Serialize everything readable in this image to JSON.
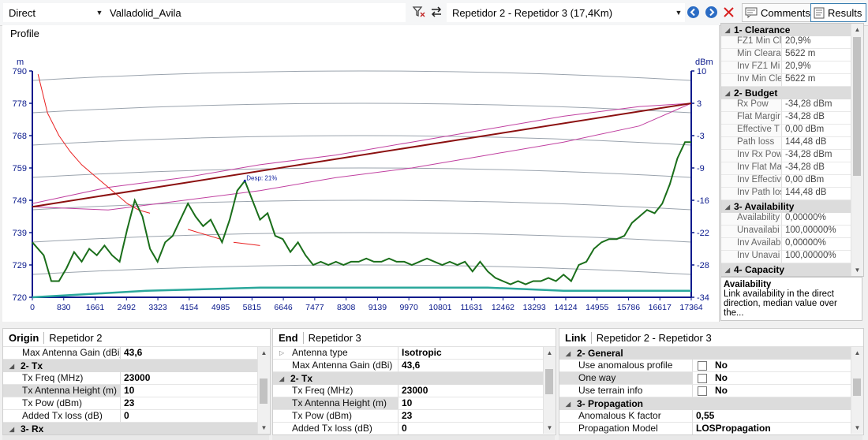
{
  "toolbar": {
    "mode": "Direct",
    "network": "Valladolid_Avila",
    "link": "Repetidor 2 - Repetidor 3 (17,4Km)",
    "comments_label": "Comments",
    "results_label": "Results"
  },
  "profile": {
    "title": "Profile"
  },
  "chart_data": {
    "type": "line",
    "left_axis_unit": "m",
    "right_axis_unit": "dBm",
    "left_ticks": [
      "790",
      "778",
      "768",
      "759",
      "749",
      "739",
      "729",
      "720"
    ],
    "right_ticks": [
      "10",
      "3",
      "-3",
      "-9",
      "-16",
      "-22",
      "-28",
      "-34"
    ],
    "x_ticks": [
      "0",
      "830",
      "1661",
      "2492",
      "3323",
      "4154",
      "4985",
      "5815",
      "6646",
      "7477",
      "8308",
      "9139",
      "9970",
      "10801",
      "11631",
      "12462",
      "13293",
      "14124",
      "14955",
      "15786",
      "16617",
      "17364"
    ],
    "xlim": [
      0,
      17364
    ],
    "ylim": [
      720,
      790
    ],
    "annotation": "Desp: 21%",
    "colors": {
      "terrain": "#1a6e1a",
      "los": "#8b1010",
      "fresnel": "#c040a0",
      "level": "#e82020",
      "baseline": "#2aa79b",
      "grid": "#9aa3ad",
      "axis": "#0a1a8c"
    },
    "terrain": [
      [
        0,
        737
      ],
      [
        300,
        733
      ],
      [
        500,
        725
      ],
      [
        700,
        725
      ],
      [
        900,
        729
      ],
      [
        1100,
        734
      ],
      [
        1300,
        731
      ],
      [
        1500,
        735
      ],
      [
        1700,
        733
      ],
      [
        1900,
        736
      ],
      [
        2100,
        733
      ],
      [
        2300,
        731
      ],
      [
        2500,
        741
      ],
      [
        2700,
        750
      ],
      [
        2900,
        745
      ],
      [
        3100,
        735
      ],
      [
        3300,
        731
      ],
      [
        3500,
        737
      ],
      [
        3700,
        739
      ],
      [
        3900,
        744
      ],
      [
        4100,
        749
      ],
      [
        4300,
        745
      ],
      [
        4500,
        742
      ],
      [
        4700,
        744
      ],
      [
        5000,
        737
      ],
      [
        5200,
        744
      ],
      [
        5400,
        753
      ],
      [
        5600,
        756
      ],
      [
        5800,
        750
      ],
      [
        6000,
        744
      ],
      [
        6200,
        746
      ],
      [
        6400,
        739
      ],
      [
        6600,
        738
      ],
      [
        6800,
        734
      ],
      [
        7000,
        737
      ],
      [
        7200,
        733
      ],
      [
        7400,
        730
      ],
      [
        7600,
        731
      ],
      [
        7800,
        730
      ],
      [
        8000,
        731
      ],
      [
        8200,
        730
      ],
      [
        8400,
        731
      ],
      [
        8600,
        731
      ],
      [
        8800,
        732
      ],
      [
        9000,
        731
      ],
      [
        9200,
        731
      ],
      [
        9400,
        732
      ],
      [
        9600,
        731
      ],
      [
        9800,
        731
      ],
      [
        10000,
        730
      ],
      [
        10200,
        731
      ],
      [
        10400,
        732
      ],
      [
        10600,
        731
      ],
      [
        10800,
        730
      ],
      [
        11000,
        731
      ],
      [
        11200,
        730
      ],
      [
        11400,
        731
      ],
      [
        11600,
        728
      ],
      [
        11800,
        731
      ],
      [
        12000,
        728
      ],
      [
        12200,
        726
      ],
      [
        12400,
        725
      ],
      [
        12600,
        724
      ],
      [
        12800,
        725
      ],
      [
        13000,
        724
      ],
      [
        13200,
        725
      ],
      [
        13400,
        725
      ],
      [
        13600,
        726
      ],
      [
        13800,
        725
      ],
      [
        14000,
        727
      ],
      [
        14200,
        725
      ],
      [
        14400,
        730
      ],
      [
        14600,
        731
      ],
      [
        14800,
        735
      ],
      [
        15000,
        737
      ],
      [
        15200,
        738
      ],
      [
        15400,
        738
      ],
      [
        15600,
        739
      ],
      [
        15800,
        743
      ],
      [
        16000,
        745
      ],
      [
        16200,
        747
      ],
      [
        16400,
        746
      ],
      [
        16600,
        749
      ],
      [
        16800,
        755
      ],
      [
        17000,
        763
      ],
      [
        17200,
        768
      ],
      [
        17364,
        768
      ]
    ],
    "los": [
      [
        0,
        748
      ],
      [
        17364,
        780
      ]
    ],
    "fresnel_top": [
      [
        0,
        749
      ],
      [
        2000,
        754
      ],
      [
        4000,
        757
      ],
      [
        6000,
        761
      ],
      [
        8000,
        764
      ],
      [
        10000,
        768
      ],
      [
        12000,
        772
      ],
      [
        14000,
        776
      ],
      [
        16000,
        779
      ],
      [
        17364,
        780
      ]
    ],
    "fresnel_bottom": [
      [
        0,
        748
      ],
      [
        2000,
        747
      ],
      [
        4000,
        750
      ],
      [
        6000,
        753
      ],
      [
        8000,
        757
      ],
      [
        10000,
        760
      ],
      [
        12000,
        764
      ],
      [
        14000,
        768
      ],
      [
        16000,
        773
      ],
      [
        17364,
        780
      ]
    ],
    "level_curve": [
      [
        150,
        789
      ],
      [
        400,
        777
      ],
      [
        700,
        770
      ],
      [
        1000,
        765
      ],
      [
        1300,
        761
      ],
      [
        1600,
        758
      ],
      [
        1900,
        755
      ],
      [
        2200,
        752
      ],
      [
        2500,
        749
      ],
      [
        2800,
        747
      ],
      [
        3100,
        746
      ]
    ],
    "level_dash1": [
      [
        4100,
        741
      ],
      [
        4950,
        738
      ]
    ],
    "level_dash2": [
      [
        5300,
        737
      ],
      [
        6000,
        736
      ]
    ],
    "baseline": [
      [
        0,
        720
      ],
      [
        3000,
        722
      ],
      [
        6000,
        723
      ],
      [
        9000,
        723
      ],
      [
        12000,
        723
      ],
      [
        14000,
        722
      ],
      [
        17364,
        722
      ]
    ]
  },
  "results": {
    "sections": [
      {
        "title": "1- Clearance",
        "rows": [
          {
            "k": "FZ1 Min Cl",
            "v": "20,9%"
          },
          {
            "k": "Min Cleara",
            "v": "5622 m"
          },
          {
            "k": "Inv FZ1 Mi",
            "v": "20,9%"
          },
          {
            "k": "Inv Min Cle",
            "v": "5622 m"
          }
        ]
      },
      {
        "title": "2- Budget",
        "rows": [
          {
            "k": "Rx Pow",
            "v": "-34,28 dBm"
          },
          {
            "k": "Flat Margir",
            "v": "-34,28 dB"
          },
          {
            "k": "Effective T",
            "v": "0,00 dBm"
          },
          {
            "k": "Path loss",
            "v": "144,48 dB"
          },
          {
            "k": "Inv Rx Pow",
            "v": "-34,28 dBm"
          },
          {
            "k": "Inv Flat Ma",
            "v": "-34,28 dB"
          },
          {
            "k": "Inv Effectiv",
            "v": "0,00 dBm"
          },
          {
            "k": "Inv Path los",
            "v": "144,48 dB"
          }
        ]
      },
      {
        "title": "3- Availability",
        "rows": [
          {
            "k": "Availability",
            "v": "0,00000%"
          },
          {
            "k": "Unavailabi",
            "v": "100,00000%"
          },
          {
            "k": "Inv Availab",
            "v": "0,00000%"
          },
          {
            "k": "Inv Unavai",
            "v": "100,00000%"
          }
        ]
      },
      {
        "title": "4- Capacity",
        "rows": []
      }
    ],
    "desc_title": "Availability",
    "desc_text": "Link availability in the direct direction, median value over the..."
  },
  "origin": {
    "label": "Origin",
    "name": "Repetidor 2",
    "rows": [
      {
        "type": "row",
        "k": "Max Antenna Gain (dBi)",
        "v": "43,6"
      },
      {
        "type": "sec",
        "t": "2- Tx"
      },
      {
        "type": "row",
        "k": "Tx Freq (MHz)",
        "v": "23000"
      },
      {
        "type": "row",
        "k": "Tx Antenna Height (m)",
        "v": "10",
        "sel": true
      },
      {
        "type": "row",
        "k": "Tx Pow (dBm)",
        "v": "23"
      },
      {
        "type": "row",
        "k": "Added Tx loss (dB)",
        "v": "0"
      },
      {
        "type": "sec",
        "t": "3- Rx"
      }
    ]
  },
  "end": {
    "label": "End",
    "name": "Repetidor 3",
    "rows": [
      {
        "type": "row",
        "k": "Antenna type",
        "v": "Isotropic",
        "tri": true
      },
      {
        "type": "row",
        "k": "Max Antenna Gain (dBi)",
        "v": "43,6"
      },
      {
        "type": "sec",
        "t": "2- Tx"
      },
      {
        "type": "row",
        "k": "Tx Freq (MHz)",
        "v": "23000"
      },
      {
        "type": "row",
        "k": "Tx Antenna Height (m)",
        "v": "10",
        "sel": true
      },
      {
        "type": "row",
        "k": "Tx Pow (dBm)",
        "v": "23"
      },
      {
        "type": "row",
        "k": "Added Tx loss (dB)",
        "v": "0"
      }
    ]
  },
  "link": {
    "label": "Link",
    "name": "Repetidor 2 - Repetidor 3",
    "rows": [
      {
        "type": "sec",
        "t": "2- General"
      },
      {
        "type": "chk",
        "k": "Use anomalous profile",
        "v": "No"
      },
      {
        "type": "chk",
        "k": "One way",
        "v": "No",
        "sel": true
      },
      {
        "type": "chk",
        "k": "Use terrain info",
        "v": "No"
      },
      {
        "type": "sec",
        "t": "3- Propagation"
      },
      {
        "type": "row",
        "k": "Anomalous K factor",
        "v": "0,55"
      },
      {
        "type": "row",
        "k": "Propagation Model",
        "v": "LOSPropagation"
      }
    ]
  }
}
